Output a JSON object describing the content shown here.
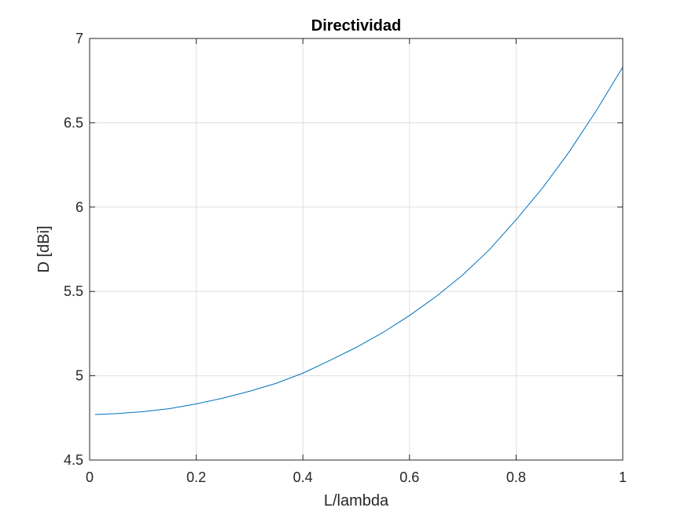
{
  "chart_data": {
    "type": "line",
    "title": "Directividad",
    "xlabel": "L/lambda",
    "ylabel": "D [dBi]",
    "xlim": [
      0,
      1
    ],
    "ylim": [
      4.5,
      7
    ],
    "xticks": [
      0,
      0.2,
      0.4,
      0.6,
      0.8,
      1
    ],
    "xtick_labels": [
      "0",
      "0.2",
      "0.4",
      "0.6",
      "0.8",
      "1"
    ],
    "yticks": [
      4.5,
      5,
      5.5,
      6,
      6.5,
      7
    ],
    "ytick_labels": [
      "4.5",
      "5",
      "5.5",
      "6",
      "6.5",
      "7"
    ],
    "grid": true,
    "series": [
      {
        "color": "#0072BD",
        "x": [
          0.01,
          0.05,
          0.1,
          0.15,
          0.2,
          0.25,
          0.3,
          0.35,
          0.4,
          0.45,
          0.5,
          0.55,
          0.6,
          0.65,
          0.7,
          0.75,
          0.8,
          0.85,
          0.9,
          0.95,
          1.0
        ],
        "y": [
          4.77,
          4.775,
          4.787,
          4.805,
          4.833,
          4.867,
          4.908,
          4.955,
          5.015,
          5.09,
          5.168,
          5.256,
          5.357,
          5.47,
          5.598,
          5.748,
          5.925,
          6.115,
          6.33,
          6.57,
          6.83
        ]
      }
    ]
  }
}
